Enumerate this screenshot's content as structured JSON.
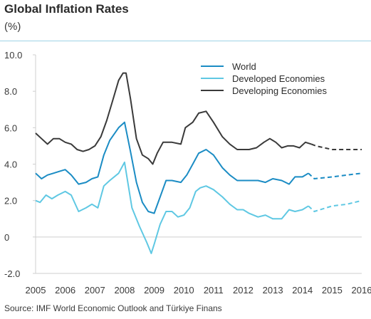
{
  "title": "Global Inflation Rates",
  "unit": "(%)",
  "source": "Source: IMF World Economic Outlook and Türkiye Finans",
  "colors": {
    "world": "#1b8cc4",
    "developed": "#5fc8e3",
    "developing": "#3a3a3a",
    "gridline": "#9fd3e6",
    "axis": "#cfcfcf"
  },
  "chart_data": {
    "type": "line",
    "title": "Global Inflation Rates",
    "ylabel": "(%)",
    "xlabel": "",
    "ylim": [
      -2.0,
      10.0
    ],
    "xlim": [
      2005,
      2016
    ],
    "y_ticks": [
      "10.0",
      "8.0",
      "6.0",
      "4.0",
      "2.0",
      "0",
      "-2.0"
    ],
    "y_tick_values": [
      10,
      8,
      6,
      4,
      2,
      0,
      -2
    ],
    "x_ticks": [
      "2005",
      "2006",
      "2007",
      "2008",
      "2009",
      "2010",
      "2011",
      "2012",
      "2013",
      "2014",
      "2015",
      "2016"
    ],
    "x_tick_values": [
      2005,
      2006,
      2007,
      2008,
      2009,
      2010,
      2011,
      2012,
      2013,
      2014,
      2015,
      2016
    ],
    "grid": false,
    "legend_position": "top-right",
    "series": [
      {
        "name": "World",
        "color": "#1b8cc4",
        "x": [
          2005.0,
          2005.2,
          2005.4,
          2005.6,
          2005.8,
          2006.0,
          2006.2,
          2006.45,
          2006.7,
          2006.9,
          2007.1,
          2007.3,
          2007.5,
          2007.8,
          2008.0,
          2008.2,
          2008.4,
          2008.6,
          2008.8,
          2009.0,
          2009.2,
          2009.4,
          2009.6,
          2009.9,
          2010.1,
          2010.3,
          2010.5,
          2010.75,
          2011.0,
          2011.3,
          2011.55,
          2011.8,
          2012.0,
          2012.2,
          2012.5,
          2012.75,
          2013.0,
          2013.3,
          2013.55,
          2013.75,
          2014.0,
          2014.2
        ],
        "y": [
          3.5,
          3.2,
          3.4,
          3.5,
          3.6,
          3.7,
          3.4,
          2.9,
          3.0,
          3.2,
          3.3,
          4.5,
          5.3,
          6.0,
          6.3,
          4.7,
          3.0,
          1.9,
          1.4,
          1.3,
          2.2,
          3.1,
          3.1,
          3.0,
          3.4,
          4.0,
          4.6,
          4.8,
          4.5,
          3.8,
          3.4,
          3.1,
          3.1,
          3.1,
          3.1,
          3.0,
          3.2,
          3.1,
          2.9,
          3.3,
          3.3,
          3.5
        ],
        "forecast_x": [
          2014.4,
          2015.0,
          2015.5,
          2016.0
        ],
        "forecast_y": [
          3.2,
          3.3,
          3.4,
          3.5
        ]
      },
      {
        "name": "Developed Economies",
        "color": "#5fc8e3",
        "x": [
          2005.0,
          2005.15,
          2005.35,
          2005.55,
          2005.75,
          2006.0,
          2006.2,
          2006.45,
          2006.7,
          2006.9,
          2007.1,
          2007.3,
          2007.5,
          2007.8,
          2008.0,
          2008.25,
          2008.5,
          2008.75,
          2008.9,
          2009.0,
          2009.2,
          2009.4,
          2009.6,
          2009.8,
          2010.0,
          2010.2,
          2010.4,
          2010.55,
          2010.75,
          2011.0,
          2011.3,
          2011.55,
          2011.8,
          2012.0,
          2012.2,
          2012.5,
          2012.75,
          2013.0,
          2013.3,
          2013.55,
          2013.75,
          2014.0,
          2014.2
        ],
        "y": [
          2.0,
          1.9,
          2.3,
          2.1,
          2.3,
          2.5,
          2.3,
          1.4,
          1.6,
          1.8,
          1.6,
          2.8,
          3.1,
          3.5,
          4.1,
          1.6,
          0.6,
          -0.3,
          -0.9,
          -0.4,
          0.7,
          1.4,
          1.4,
          1.1,
          1.2,
          1.6,
          2.5,
          2.7,
          2.8,
          2.6,
          2.2,
          1.8,
          1.5,
          1.5,
          1.3,
          1.1,
          1.2,
          1.0,
          1.0,
          1.5,
          1.4,
          1.5,
          1.7
        ],
        "forecast_x": [
          2014.4,
          2015.0,
          2015.5,
          2016.0
        ],
        "forecast_y": [
          1.4,
          1.7,
          1.8,
          2.0
        ]
      },
      {
        "name": "Developing Economies",
        "color": "#3a3a3a",
        "x": [
          2005.0,
          2005.2,
          2005.4,
          2005.6,
          2005.8,
          2006.0,
          2006.2,
          2006.4,
          2006.6,
          2006.8,
          2007.0,
          2007.2,
          2007.4,
          2007.6,
          2007.8,
          2007.95,
          2008.05,
          2008.2,
          2008.4,
          2008.6,
          2008.8,
          2008.95,
          2009.1,
          2009.3,
          2009.6,
          2009.9,
          2010.05,
          2010.3,
          2010.5,
          2010.75,
          2011.0,
          2011.3,
          2011.55,
          2011.8,
          2012.0,
          2012.2,
          2012.45,
          2012.7,
          2012.9,
          2013.1,
          2013.3,
          2013.5,
          2013.7,
          2013.9,
          2014.1,
          2014.3
        ],
        "y": [
          5.7,
          5.4,
          5.1,
          5.4,
          5.4,
          5.2,
          5.1,
          4.8,
          4.7,
          4.8,
          5.0,
          5.5,
          6.4,
          7.5,
          8.6,
          9.0,
          9.0,
          7.6,
          5.4,
          4.5,
          4.3,
          4.0,
          4.6,
          5.2,
          5.2,
          5.1,
          6.0,
          6.3,
          6.8,
          6.9,
          6.3,
          5.5,
          5.1,
          4.8,
          4.8,
          4.8,
          4.9,
          5.2,
          5.4,
          5.2,
          4.9,
          5.0,
          5.0,
          4.9,
          5.2,
          5.1
        ],
        "forecast_x": [
          2014.45,
          2015.0,
          2015.5,
          2016.0
        ],
        "forecast_y": [
          5.0,
          4.8,
          4.8,
          4.8
        ]
      }
    ]
  }
}
